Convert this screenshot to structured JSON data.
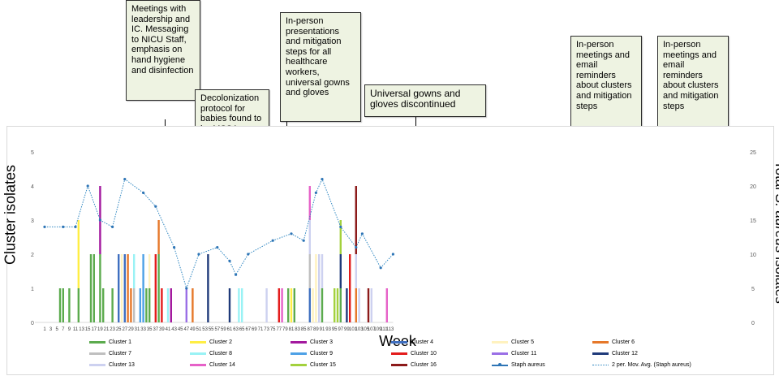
{
  "chart_data": {
    "type": "bar",
    "xlabel": "Week",
    "ylabel_left": "Cluster isolates",
    "ylabel_right_pre": "Total ",
    "ylabel_right_italic": "S. aureus",
    "ylabel_right_post": " isolates",
    "ylim_left": [
      0,
      5
    ],
    "ylim_right": [
      0,
      25
    ],
    "y_ticks_left": [
      "0",
      "1",
      "2",
      "3",
      "4",
      "5"
    ],
    "y_ticks_right": [
      "0",
      "5",
      "10",
      "15",
      "20",
      "25"
    ],
    "x_ticks": [
      "1",
      "3",
      "5",
      "7",
      "9",
      "11",
      "13",
      "15",
      "17",
      "19",
      "21",
      "23",
      "25",
      "27",
      "29",
      "31",
      "33",
      "35",
      "37",
      "39",
      "41",
      "43",
      "45",
      "47",
      "49",
      "51",
      "53",
      "55",
      "57",
      "59",
      "61",
      "63",
      "65",
      "67",
      "69",
      "71",
      "73",
      "75",
      "77",
      "79",
      "81",
      "83",
      "85",
      "87",
      "89",
      "91",
      "93",
      "95",
      "97",
      "99",
      "101",
      "103",
      "105",
      "107",
      "109",
      "111",
      "113"
    ],
    "grid": false,
    "legend_position": "bottom",
    "clusters": [
      {
        "name": "Cluster 1",
        "color": "#5cab4e"
      },
      {
        "name": "Cluster 2",
        "color": "#ffee44"
      },
      {
        "name": "Cluster 3",
        "color": "#a3199e"
      },
      {
        "name": "Cluster 4",
        "color": "#3f6fc0"
      },
      {
        "name": "Cluster 5",
        "color": "#fff2bf"
      },
      {
        "name": "Cluster 6",
        "color": "#e6782a"
      },
      {
        "name": "Cluster 7",
        "color": "#bfbfbf"
      },
      {
        "name": "Cluster 8",
        "color": "#99f2f5"
      },
      {
        "name": "Cluster 9",
        "color": "#4ea1e6"
      },
      {
        "name": "Cluster 10",
        "color": "#e31c1c"
      },
      {
        "name": "Cluster 11",
        "color": "#9a6fe6"
      },
      {
        "name": "Cluster 12",
        "color": "#1f3a7a"
      },
      {
        "name": "Cluster 13",
        "color": "#cdd1f0"
      },
      {
        "name": "Cluster 14",
        "color": "#e661c8"
      },
      {
        "name": "Cluster 15",
        "color": "#a3d13d"
      },
      {
        "name": "Cluster 16",
        "color": "#8c1a1a"
      }
    ],
    "bars": [
      {
        "week": 6,
        "stack": [
          {
            "c": 1,
            "v": 1
          }
        ]
      },
      {
        "week": 7,
        "stack": [
          {
            "c": 1,
            "v": 1
          }
        ]
      },
      {
        "week": 9,
        "stack": [
          {
            "c": 1,
            "v": 1
          }
        ]
      },
      {
        "week": 12,
        "stack": [
          {
            "c": 1,
            "v": 1
          },
          {
            "c": 2,
            "v": 2
          }
        ]
      },
      {
        "week": 16,
        "stack": [
          {
            "c": 1,
            "v": 2
          }
        ]
      },
      {
        "week": 17,
        "stack": [
          {
            "c": 1,
            "v": 2
          }
        ]
      },
      {
        "week": 19,
        "stack": [
          {
            "c": 1,
            "v": 2
          },
          {
            "c": 3,
            "v": 2
          }
        ]
      },
      {
        "week": 20,
        "stack": [
          {
            "c": 1,
            "v": 1
          }
        ]
      },
      {
        "week": 23,
        "stack": [
          {
            "c": 1,
            "v": 1
          }
        ]
      },
      {
        "week": 25,
        "stack": [
          {
            "c": 4,
            "v": 2
          }
        ]
      },
      {
        "week": 26,
        "stack": [
          {
            "c": 5,
            "v": 1
          },
          {
            "c": 5,
            "v": 1
          }
        ]
      },
      {
        "week": 27,
        "stack": [
          {
            "c": 4,
            "v": 2
          }
        ]
      },
      {
        "week": 28,
        "stack": [
          {
            "c": 6,
            "v": 2
          }
        ]
      },
      {
        "week": 29,
        "stack": [
          {
            "c": 6,
            "v": 1
          }
        ]
      },
      {
        "week": 30,
        "stack": [
          {
            "c": 7,
            "v": 1
          },
          {
            "c": 8,
            "v": 1
          }
        ]
      },
      {
        "week": 32,
        "stack": [
          {
            "c": 9,
            "v": 1
          }
        ]
      },
      {
        "week": 33,
        "stack": [
          {
            "c": 9,
            "v": 2
          }
        ]
      },
      {
        "week": 34,
        "stack": [
          {
            "c": 1,
            "v": 1
          }
        ]
      },
      {
        "week": 35,
        "stack": [
          {
            "c": 1,
            "v": 1
          },
          {
            "c": 5,
            "v": 1
          }
        ]
      },
      {
        "week": 37,
        "stack": [
          {
            "c": 10,
            "v": 2
          }
        ]
      },
      {
        "week": 38,
        "stack": [
          {
            "c": 1,
            "v": 2
          },
          {
            "c": 6,
            "v": 1
          }
        ]
      },
      {
        "week": 39,
        "stack": [
          {
            "c": 10,
            "v": 1
          }
        ]
      },
      {
        "week": 41,
        "stack": [
          {
            "c": 8,
            "v": 1
          }
        ]
      },
      {
        "week": 42,
        "stack": [
          {
            "c": 3,
            "v": 1
          }
        ]
      },
      {
        "week": 47,
        "stack": [
          {
            "c": 11,
            "v": 1
          }
        ]
      },
      {
        "week": 49,
        "stack": [
          {
            "c": 6,
            "v": 1
          }
        ]
      },
      {
        "week": 54,
        "stack": [
          {
            "c": 12,
            "v": 2
          }
        ]
      },
      {
        "week": 61,
        "stack": [
          {
            "c": 12,
            "v": 1
          }
        ]
      },
      {
        "week": 64,
        "stack": [
          {
            "c": 8,
            "v": 1
          }
        ]
      },
      {
        "week": 65,
        "stack": [
          {
            "c": 8,
            "v": 1
          }
        ]
      },
      {
        "week": 73,
        "stack": [
          {
            "c": 13,
            "v": 1
          }
        ]
      },
      {
        "week": 77,
        "stack": [
          {
            "c": 10,
            "v": 1
          }
        ]
      },
      {
        "week": 78,
        "stack": [
          {
            "c": 14,
            "v": 1
          }
        ]
      },
      {
        "week": 80,
        "stack": [
          {
            "c": 1,
            "v": 1
          }
        ]
      },
      {
        "week": 81,
        "stack": [
          {
            "c": 2,
            "v": 1
          }
        ]
      },
      {
        "week": 82,
        "stack": [
          {
            "c": 1,
            "v": 1
          }
        ]
      },
      {
        "week": 87,
        "stack": [
          {
            "c": 4,
            "v": 1
          },
          {
            "c": 7,
            "v": 1
          },
          {
            "c": 13,
            "v": 1
          },
          {
            "c": 14,
            "v": 1
          }
        ]
      },
      {
        "week": 88,
        "stack": [
          {
            "c": 5,
            "v": 1
          }
        ]
      },
      {
        "week": 89,
        "stack": [
          {
            "c": 5,
            "v": 2
          }
        ]
      },
      {
        "week": 90,
        "stack": [
          {
            "c": 13,
            "v": 2
          }
        ]
      },
      {
        "week": 91,
        "stack": [
          {
            "c": 1,
            "v": 1
          },
          {
            "c": 13,
            "v": 1
          }
        ]
      },
      {
        "week": 95,
        "stack": [
          {
            "c": 15,
            "v": 1
          }
        ]
      },
      {
        "week": 96,
        "stack": [
          {
            "c": 15,
            "v": 1
          }
        ]
      },
      {
        "week": 97,
        "stack": [
          {
            "c": 1,
            "v": 1
          },
          {
            "c": 12,
            "v": 1
          },
          {
            "c": 15,
            "v": 1
          }
        ]
      },
      {
        "week": 99,
        "stack": [
          {
            "c": 12,
            "v": 1
          }
        ]
      },
      {
        "week": 100,
        "stack": [
          {
            "c": 10,
            "v": 2
          }
        ]
      },
      {
        "week": 102,
        "stack": [
          {
            "c": 6,
            "v": 1
          },
          {
            "c": 13,
            "v": 1
          },
          {
            "c": 16,
            "v": 2
          }
        ]
      },
      {
        "week": 103,
        "stack": [
          {
            "c": 13,
            "v": 1
          }
        ]
      },
      {
        "week": 106,
        "stack": [
          {
            "c": 16,
            "v": 1
          }
        ]
      },
      {
        "week": 107,
        "stack": [
          {
            "c": 13,
            "v": 1
          }
        ]
      },
      {
        "week": 112,
        "stack": [
          {
            "c": 14,
            "v": 1
          }
        ]
      }
    ],
    "series": [
      {
        "name": "Staph aureus",
        "type": "line",
        "color": "#2e75b6",
        "points": [
          [
            1,
            14
          ],
          [
            7,
            14
          ],
          [
            11,
            14
          ],
          [
            15,
            20
          ],
          [
            19,
            15
          ],
          [
            23,
            14
          ],
          [
            27,
            21
          ],
          [
            33,
            19
          ],
          [
            37,
            17
          ],
          [
            43,
            11
          ],
          [
            47,
            5
          ],
          [
            51,
            10
          ],
          [
            57,
            11
          ],
          [
            61,
            9
          ],
          [
            63,
            7
          ],
          [
            67,
            10
          ],
          [
            75,
            12
          ],
          [
            81,
            13
          ],
          [
            85,
            12
          ],
          [
            89,
            19
          ],
          [
            91,
            21
          ],
          [
            97,
            14
          ],
          [
            102,
            11
          ],
          [
            104,
            13
          ],
          [
            110,
            8
          ],
          [
            114,
            10
          ]
        ]
      },
      {
        "name": "2 per. Mov. Avg. (Staph aureus)",
        "type": "moving-average",
        "color": "#2e86c1"
      }
    ]
  },
  "annotations": [
    {
      "text": "Meetings with leadership and IC. Messaging to NICU Staff, emphasis on hand hygiene and disinfection",
      "week": 19
    },
    {
      "text": "Decolonization protocol for babies found to be MSSA carriers",
      "week": 28
    },
    {
      "text": "In-person presentations and mitigation steps for all healthcare workers, universal gowns and gloves",
      "week": 36
    },
    {
      "text": "Universal gowns and gloves discontinued",
      "week": 60
    },
    {
      "text": "In-person meetings and email reminders about clusters and mitigation steps",
      "week": 91
    },
    {
      "text": "In-person meetings and email reminders about clusters and mitigation steps",
      "week": 102
    }
  ]
}
